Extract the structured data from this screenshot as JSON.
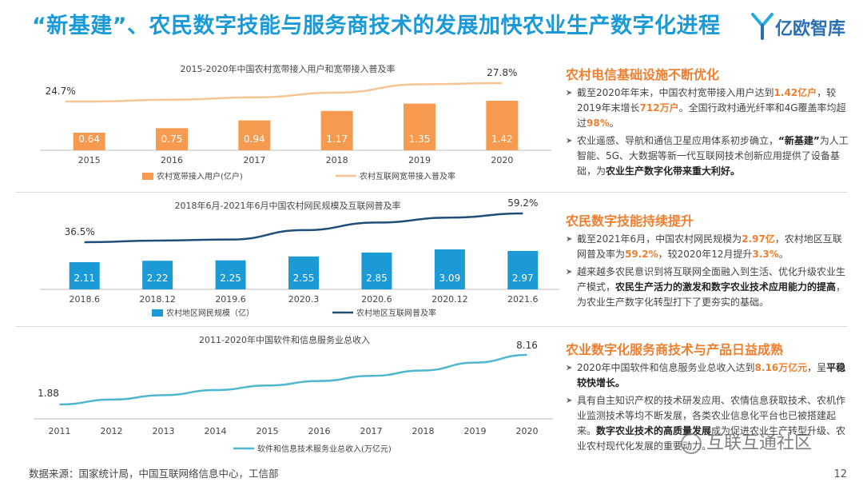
{
  "header": {
    "title": "“新基建”、农民数字技能与服务商技术的发展加快农业生产数字化进程",
    "logo_text": "亿欧智库"
  },
  "colors": {
    "title_blue": "#1a9ad8",
    "bar_orange": "#f59a4e",
    "line_orange": "#f6c594",
    "bar_blue": "#1b9ad6",
    "line_navy": "#1f4e79",
    "line_cyan": "#4eb6cf",
    "heading_orange": "#ef7f30"
  },
  "chart_data": [
    {
      "type": "bar+line",
      "title": "2015-2020年中国农村宽带接入用户和宽带接入普及率",
      "categories": [
        "2015",
        "2016",
        "2017",
        "2018",
        "2019",
        "2020"
      ],
      "series": [
        {
          "name": "农村宽带接入用户(亿户)",
          "kind": "bar",
          "values": [
            0.64,
            0.75,
            0.94,
            1.17,
            1.35,
            1.42
          ],
          "value_labels": [
            "0.64",
            "0.75",
            "0.94",
            "1.17",
            "1.35",
            "1.42"
          ]
        },
        {
          "name": "农村互联网宽带接入普及率",
          "kind": "line",
          "values": [
            24.7,
            25.0,
            25.4,
            26.2,
            27.6,
            27.8
          ],
          "unit": "%",
          "shown_labels": {
            "0": "24.7%",
            "5": "27.8%"
          }
        }
      ]
    },
    {
      "type": "bar+line",
      "title": "2018年6月-2021年6月中国农村网民规模及互联网普及率",
      "categories": [
        "2018.6",
        "2018.12",
        "2019.6",
        "2020.3",
        "2020.6",
        "2020.12",
        "2021.6"
      ],
      "series": [
        {
          "name": "农村地区网民规模（亿）",
          "kind": "bar",
          "values": [
            2.11,
            2.22,
            2.25,
            2.55,
            2.85,
            3.09,
            2.97
          ],
          "value_labels": [
            "2.11",
            "2.22",
            "2.25",
            "2.55",
            "2.85",
            "3.09",
            "2.97"
          ]
        },
        {
          "name": "农村地区互联网普及率",
          "kind": "line",
          "values": [
            36.5,
            37.8,
            38.6,
            46.0,
            52.0,
            55.9,
            59.2
          ],
          "unit": "%",
          "shown_labels": {
            "0": "36.5%",
            "6": "59.2%"
          }
        }
      ]
    },
    {
      "type": "line",
      "title": "2011-2020年中国软件和信息服务业总收入",
      "categories": [
        "2011",
        "2012",
        "2013",
        "2014",
        "2015",
        "2016",
        "2017",
        "2018",
        "2019",
        "2020"
      ],
      "series": [
        {
          "name": "软件和信息技术服务业总收入(万亿元)",
          "kind": "line",
          "values": [
            1.88,
            2.5,
            3.06,
            3.7,
            4.28,
            4.85,
            5.5,
            6.19,
            7.18,
            8.16
          ],
          "shown_labels": {
            "0": "1.88",
            "9": "8.16"
          }
        }
      ]
    }
  ],
  "sections": [
    {
      "heading": "农村电信基础设施不断优化",
      "bullets": [
        [
          {
            "t": "截至2020年年末，中国农村宽带接入用户达到"
          },
          {
            "t": "1.42亿户",
            "s": "o"
          },
          {
            "t": "，较2019年末增长"
          },
          {
            "t": "712万户",
            "s": "o"
          },
          {
            "t": "。全国行政村通光纤率和4G覆盖率均超过"
          },
          {
            "t": "98%",
            "s": "o"
          },
          {
            "t": "。"
          }
        ],
        [
          {
            "t": "农业遥感、导航和通信卫星应用体系初步确立，"
          },
          {
            "t": "“新基建”",
            "s": "b"
          },
          {
            "t": "为人工智能、5G、大数据等新一代互联网技术创新应用提供了设备基础，为"
          },
          {
            "t": "农业生产数字化带来重大利好。",
            "s": "b"
          }
        ]
      ]
    },
    {
      "heading": "农民数字技能持续提升",
      "bullets": [
        [
          {
            "t": "截至2021年6月，中国农村网民规模为"
          },
          {
            "t": "2.97亿",
            "s": "o"
          },
          {
            "t": "，农村地区互联网普及率为"
          },
          {
            "t": "59.2%",
            "s": "o"
          },
          {
            "t": "，较2020年12月提升"
          },
          {
            "t": "3.3%",
            "s": "o"
          },
          {
            "t": "。"
          }
        ],
        [
          {
            "t": "越来越多农民意识到将互联网全面融入到生活、优化升级农业生产模式，"
          },
          {
            "t": "农民生产活力的激发和数字农业技术应用能力的提高",
            "s": "b"
          },
          {
            "t": "，为农业生产数字化转型打下了更夯实的基础。"
          }
        ]
      ]
    },
    {
      "heading": "农业数字化服务商技术与产品日益成熟",
      "bullets": [
        [
          {
            "t": "2020年中国软件和信息服务业总收入达到"
          },
          {
            "t": "8.16万亿元",
            "s": "o"
          },
          {
            "t": "，呈"
          },
          {
            "t": "平稳较快增长。",
            "s": "b"
          }
        ],
        [
          {
            "t": "具有自主知识产权的技术研发应用、农情信息获取技术、农机作业监测技术等均不断发展，各类农业信息化平台也已被搭建起来。"
          },
          {
            "t": "数字农业技术的高质量发展",
            "s": "b"
          },
          {
            "t": "成为促进农业生产转型升级、农业农村现代化发展的重要动力。"
          }
        ]
      ]
    }
  ],
  "footer": {
    "source": "数据来源：国家统计局，中国互联网络信息中心，工信部",
    "page_number": "12",
    "watermark": "互联互通社区"
  }
}
